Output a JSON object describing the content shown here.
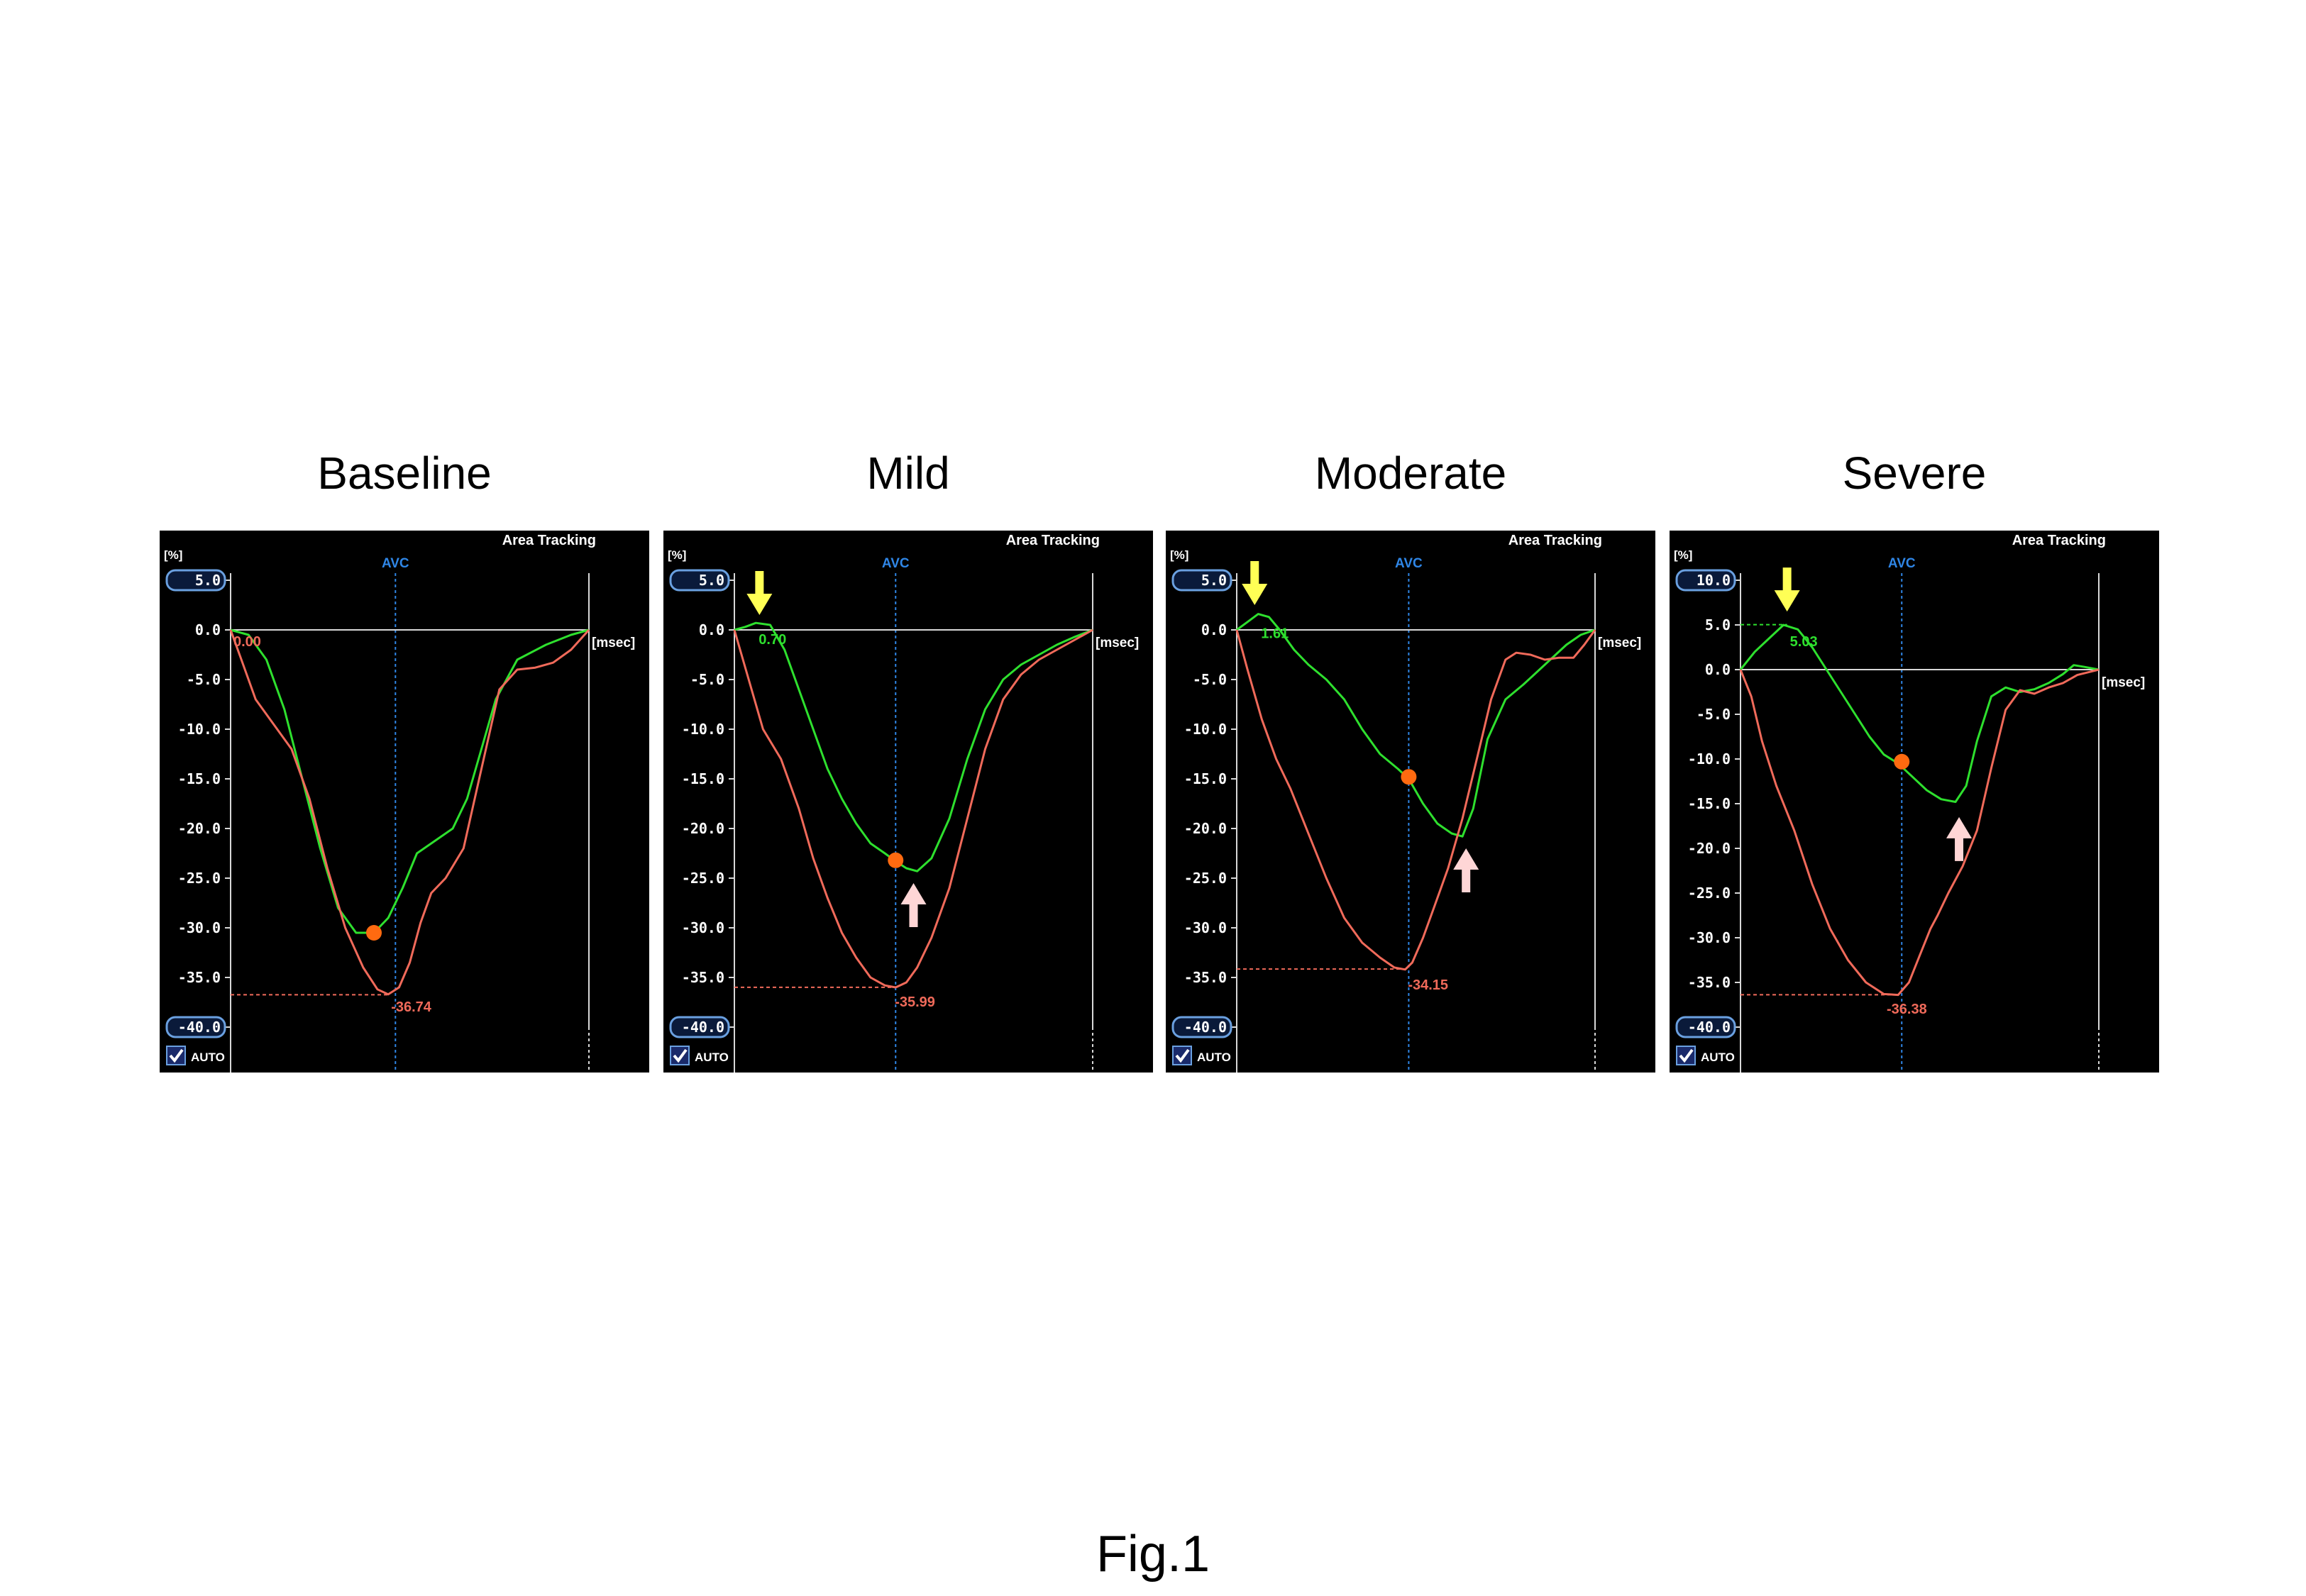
{
  "figure_caption": "Fig.1",
  "colors": {
    "background": "#000000",
    "green_curve": "#2ee02e",
    "red_curve": "#f06a5a",
    "avc_line": "#2f86e6",
    "axis": "#d8d8d8",
    "orange_dot": "#ff6a10",
    "yellow_arrow": "#ffff55",
    "pink_arrow": "#ffd6d6"
  },
  "chart_data": [
    {
      "type": "line",
      "title": "Baseline",
      "mode_label": "Area Tracking",
      "ylabel": "[%]",
      "xlabel": "[msec]",
      "avc_label": "AVC",
      "auto_label": "AUTO",
      "ylim": [
        -40,
        5
      ],
      "yticks": [
        "5.0",
        "0.0",
        "-5.0",
        "-10.0",
        "-15.0",
        "-20.0",
        "-25.0",
        "-30.0",
        "-35.0",
        "-40.0"
      ],
      "ytick_values": [
        5,
        0,
        -5,
        -10,
        -15,
        -20,
        -25,
        -30,
        -35,
        -40
      ],
      "boxed_ticks": [
        "5.0",
        "-40.0"
      ],
      "xlim": [
        0,
        1
      ],
      "avc_x": 0.46,
      "series": [
        {
          "name": "green",
          "x": [
            0,
            0.05,
            0.1,
            0.15,
            0.2,
            0.25,
            0.3,
            0.35,
            0.4,
            0.44,
            0.48,
            0.52,
            0.58,
            0.62,
            0.66,
            0.7,
            0.74,
            0.8,
            0.88,
            0.95,
            1.0
          ],
          "values": [
            0,
            -0.5,
            -3,
            -8,
            -15,
            -22,
            -28,
            -30.5,
            -30.5,
            -29,
            -26,
            -22.5,
            -21,
            -20,
            -17,
            -12,
            -7,
            -3,
            -1.5,
            -0.5,
            0
          ]
        },
        {
          "name": "red",
          "x": [
            0,
            0.03,
            0.07,
            0.12,
            0.17,
            0.22,
            0.27,
            0.32,
            0.37,
            0.41,
            0.44,
            0.47,
            0.5,
            0.53,
            0.56,
            0.6,
            0.65,
            0.7,
            0.75,
            0.8,
            0.85,
            0.9,
            0.95,
            1.0
          ],
          "values": [
            0,
            -3,
            -7,
            -9.5,
            -12,
            -17,
            -24,
            -30,
            -34,
            -36.2,
            -36.7,
            -36,
            -33.5,
            -29.5,
            -26.5,
            -25,
            -22,
            -14,
            -6,
            -4,
            -3.8,
            -3.3,
            -2,
            0
          ]
        }
      ],
      "annotations": [
        {
          "text": "0.00",
          "x": 0.0,
          "y": -1.2,
          "color": "red",
          "anchor": "start"
        },
        {
          "text": "-36.74",
          "x": 0.44,
          "y": -38,
          "color": "red",
          "anchor": "start"
        }
      ],
      "ref_line": {
        "y": -36.74,
        "x_end": 0.44,
        "color": "red"
      },
      "dots": [
        {
          "x": 0.4,
          "y": -30.5
        }
      ],
      "yellow_arrows": [],
      "pink_arrows": []
    },
    {
      "type": "line",
      "title": "Mild",
      "mode_label": "Area Tracking",
      "ylabel": "[%]",
      "xlabel": "[msec]",
      "avc_label": "AVC",
      "auto_label": "AUTO",
      "ylim": [
        -40,
        5
      ],
      "yticks": [
        "5.0",
        "0.0",
        "-5.0",
        "-10.0",
        "-15.0",
        "-20.0",
        "-25.0",
        "-30.0",
        "-35.0",
        "-40.0"
      ],
      "ytick_values": [
        5,
        0,
        -5,
        -10,
        -15,
        -20,
        -25,
        -30,
        -35,
        -40
      ],
      "boxed_ticks": [
        "5.0",
        "-40.0"
      ],
      "xlim": [
        0,
        1
      ],
      "avc_x": 0.45,
      "series": [
        {
          "name": "green",
          "x": [
            0,
            0.03,
            0.06,
            0.1,
            0.14,
            0.18,
            0.22,
            0.26,
            0.3,
            0.34,
            0.38,
            0.42,
            0.45,
            0.48,
            0.51,
            0.55,
            0.6,
            0.65,
            0.7,
            0.75,
            0.8,
            0.85,
            0.9,
            0.95,
            1.0
          ],
          "values": [
            0,
            0.3,
            0.7,
            0.5,
            -2,
            -6,
            -10,
            -14,
            -17,
            -19.5,
            -21.5,
            -22.5,
            -23.3,
            -24,
            -24.3,
            -23,
            -19,
            -13,
            -8,
            -5,
            -3.5,
            -2.5,
            -1.5,
            -0.7,
            0
          ]
        },
        {
          "name": "red",
          "x": [
            0,
            0.04,
            0.08,
            0.13,
            0.18,
            0.22,
            0.26,
            0.3,
            0.34,
            0.38,
            0.42,
            0.45,
            0.48,
            0.51,
            0.55,
            0.6,
            0.65,
            0.7,
            0.75,
            0.8,
            0.85,
            0.9,
            0.95,
            1.0
          ],
          "values": [
            0,
            -5,
            -10,
            -13,
            -18,
            -23,
            -27,
            -30.5,
            -33,
            -35,
            -35.8,
            -36,
            -35.5,
            -34,
            -31,
            -26,
            -19,
            -12,
            -7,
            -4.5,
            -3,
            -2,
            -1,
            0
          ]
        }
      ],
      "annotations": [
        {
          "text": "0.70",
          "x": 0.06,
          "y": -1.0,
          "color": "green",
          "anchor": "start"
        },
        {
          "text": "-35.99",
          "x": 0.44,
          "y": -37.5,
          "color": "red",
          "anchor": "start"
        }
      ],
      "ref_line": {
        "y": -35.99,
        "x_end": 0.45,
        "color": "red"
      },
      "dots": [
        {
          "x": 0.45,
          "y": -23.2
        }
      ],
      "yellow_arrows": [
        {
          "x": 0.07,
          "y_tip": 1.5
        }
      ],
      "pink_arrows": [
        {
          "x": 0.5,
          "y_tip": -25.5
        }
      ]
    },
    {
      "type": "line",
      "title": "Moderate",
      "mode_label": "Area Tracking",
      "ylabel": "[%]",
      "xlabel": "[msec]",
      "avc_label": "AVC",
      "auto_label": "AUTO",
      "ylim": [
        -40,
        5
      ],
      "yticks": [
        "5.0",
        "0.0",
        "-5.0",
        "-10.0",
        "-15.0",
        "-20.0",
        "-25.0",
        "-30.0",
        "-35.0",
        "-40.0"
      ],
      "ytick_values": [
        5,
        0,
        -5,
        -10,
        -15,
        -20,
        -25,
        -30,
        -35,
        -40
      ],
      "boxed_ticks": [
        "5.0",
        "-40.0"
      ],
      "xlim": [
        0,
        1
      ],
      "avc_x": 0.48,
      "series": [
        {
          "name": "green",
          "x": [
            0,
            0.03,
            0.06,
            0.09,
            0.12,
            0.16,
            0.2,
            0.25,
            0.3,
            0.35,
            0.4,
            0.45,
            0.48,
            0.52,
            0.56,
            0.6,
            0.63,
            0.66,
            0.7,
            0.75,
            0.8,
            0.86,
            0.92,
            0.96,
            1.0
          ],
          "values": [
            0,
            0.8,
            1.6,
            1.3,
            0,
            -2,
            -3.5,
            -5,
            -7,
            -10,
            -12.5,
            -14,
            -15,
            -17.5,
            -19.5,
            -20.5,
            -20.8,
            -18,
            -11,
            -7,
            -5.5,
            -3.5,
            -1.5,
            -0.5,
            0
          ]
        },
        {
          "name": "red",
          "x": [
            0,
            0.03,
            0.07,
            0.11,
            0.15,
            0.2,
            0.25,
            0.3,
            0.35,
            0.4,
            0.44,
            0.47,
            0.49,
            0.52,
            0.55,
            0.59,
            0.63,
            0.67,
            0.71,
            0.75,
            0.78,
            0.82,
            0.86,
            0.9,
            0.94,
            0.97,
            1.0
          ],
          "values": [
            0,
            -4,
            -9,
            -13,
            -16,
            -20.5,
            -25,
            -29,
            -31.5,
            -33,
            -34,
            -34.2,
            -33.5,
            -31,
            -28,
            -24,
            -19,
            -13,
            -7,
            -3,
            -2.3,
            -2.5,
            -3,
            -2.8,
            -2.8,
            -1.5,
            0
          ]
        }
      ],
      "annotations": [
        {
          "text": "1.61",
          "x": 0.06,
          "y": -0.4,
          "color": "green",
          "anchor": "start"
        },
        {
          "text": "-34.15",
          "x": 0.47,
          "y": -35.8,
          "color": "red",
          "anchor": "start"
        }
      ],
      "ref_line": {
        "y": -34.15,
        "x_end": 0.47,
        "color": "red"
      },
      "dots": [
        {
          "x": 0.48,
          "y": -14.8
        }
      ],
      "yellow_arrows": [
        {
          "x": 0.05,
          "y_tip": 2.5
        }
      ],
      "pink_arrows": [
        {
          "x": 0.64,
          "y_tip": -22
        }
      ]
    },
    {
      "type": "line",
      "title": "Severe",
      "mode_label": "Area Tracking",
      "ylabel": "[%]",
      "xlabel": "[msec]",
      "avc_label": "AVC",
      "auto_label": "AUTO",
      "ylim": [
        -40,
        10
      ],
      "yticks": [
        "10.0",
        "5.0",
        "0.0",
        "-5.0",
        "-10.0",
        "-15.0",
        "-20.0",
        "-25.0",
        "-30.0",
        "-35.0",
        "-40.0"
      ],
      "ytick_values": [
        10,
        5,
        0,
        -5,
        -10,
        -15,
        -20,
        -25,
        -30,
        -35,
        -40
      ],
      "boxed_ticks": [
        "10.0",
        "-40.0"
      ],
      "xlim": [
        0,
        1
      ],
      "avc_x": 0.45,
      "series": [
        {
          "name": "green",
          "x": [
            0,
            0.04,
            0.08,
            0.12,
            0.16,
            0.2,
            0.24,
            0.28,
            0.32,
            0.36,
            0.4,
            0.44,
            0.48,
            0.52,
            0.56,
            0.6,
            0.63,
            0.66,
            0.7,
            0.74,
            0.78,
            0.82,
            0.86,
            0.9,
            0.93,
            0.96,
            1.0
          ],
          "values": [
            0,
            2,
            3.5,
            5,
            4.5,
            2.5,
            0,
            -2.5,
            -5,
            -7.5,
            -9.5,
            -10.5,
            -12,
            -13.5,
            -14.5,
            -14.8,
            -13,
            -8,
            -3,
            -2,
            -2.5,
            -2.2,
            -1.5,
            -0.5,
            0.5,
            0.3,
            0
          ]
        },
        {
          "name": "red",
          "x": [
            0,
            0.03,
            0.06,
            0.1,
            0.15,
            0.2,
            0.25,
            0.3,
            0.35,
            0.4,
            0.44,
            0.47,
            0.5,
            0.53,
            0.55,
            0.58,
            0.62,
            0.66,
            0.7,
            0.74,
            0.78,
            0.82,
            0.86,
            0.9,
            0.94,
            0.97,
            1.0
          ],
          "values": [
            0,
            -3,
            -8,
            -13,
            -18,
            -24,
            -29,
            -32.5,
            -35,
            -36.3,
            -36.4,
            -35,
            -32,
            -29,
            -27.5,
            -25,
            -22,
            -18,
            -11,
            -4.5,
            -2.3,
            -2.7,
            -2,
            -1.5,
            -0.6,
            -0.3,
            0
          ]
        }
      ],
      "annotations": [
        {
          "text": "5.03",
          "x": 0.13,
          "y": 3.1,
          "color": "green",
          "anchor": "start"
        },
        {
          "text": "-36.38",
          "x": 0.4,
          "y": -38,
          "color": "red",
          "anchor": "start"
        }
      ],
      "ref_lines": [
        {
          "y": -36.38,
          "x_end": 0.42,
          "color": "red"
        },
        {
          "y": 5.03,
          "x_end": 0.13,
          "color": "green"
        }
      ],
      "dots": [
        {
          "x": 0.45,
          "y": -10.3
        }
      ],
      "yellow_arrows": [
        {
          "x": 0.13,
          "y_tip": 6.5
        }
      ],
      "pink_arrows": [
        {
          "x": 0.61,
          "y_tip": -16.5
        }
      ]
    }
  ]
}
